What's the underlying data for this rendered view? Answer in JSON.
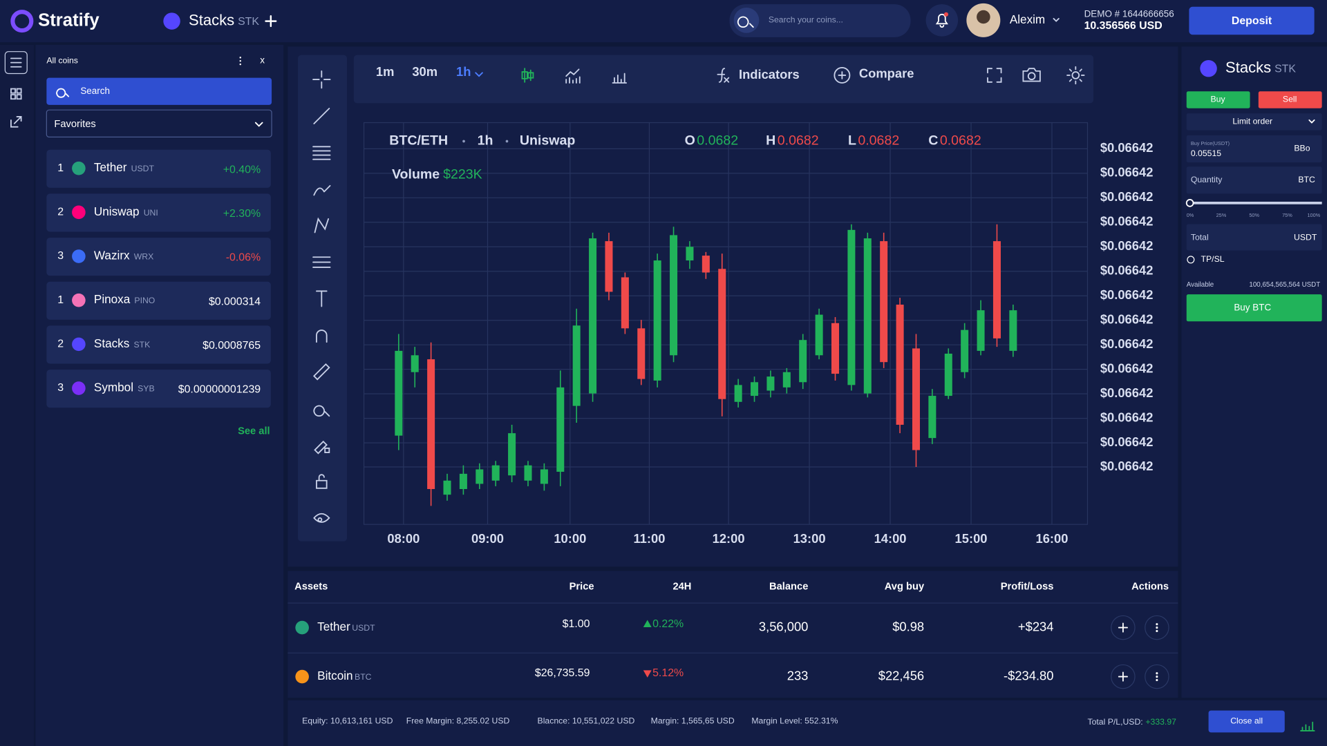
{
  "header": {
    "brand": "Stratify",
    "pair": {
      "name": "Stacks",
      "ticker": "STK"
    },
    "search_placeholder": "Search your coins...",
    "user": "Alexim",
    "account": "DEMO # 1644666656",
    "balance": "10.356566 USD",
    "deposit": "Deposit"
  },
  "coins_panel": {
    "title": "All coins",
    "close": "x",
    "search": "Search",
    "filter": "Favorites",
    "see_all": "See all",
    "coins": [
      {
        "rank": "1",
        "name": "Tether",
        "ticker": "USDT",
        "value": "+0.40%",
        "icon": "#26a17b"
      },
      {
        "rank": "2",
        "name": "Uniswap",
        "ticker": "UNI",
        "value": "+2.30%",
        "icon": "#ff007a"
      },
      {
        "rank": "3",
        "name": "Wazirx",
        "ticker": "WRX",
        "value": "-0.06%",
        "icon": "#3b6cf6"
      },
      {
        "rank": "1",
        "name": "Pinoxa",
        "ticker": "PINO",
        "value": "$0.000314",
        "icon": "#f472b6"
      },
      {
        "rank": "2",
        "name": "Stacks",
        "ticker": "STK",
        "value": "$0.0008765",
        "icon": "#5546ff"
      },
      {
        "rank": "3",
        "name": "Symbol",
        "ticker": "SYB",
        "value": "$0.00000001239",
        "icon": "#7b2ff7"
      }
    ]
  },
  "toolbar": {
    "timeframes": [
      "1m",
      "30m",
      "1h"
    ],
    "indicators": "Indicators",
    "compare": "Compare"
  },
  "chart_data": {
    "type": "candlestick",
    "pair": "BTC/ETH",
    "interval": "1h",
    "exchange": "Uniswap",
    "ohlc": [
      {
        "key": "O",
        "value": "0.0682"
      },
      {
        "key": "H",
        "value": "0.0682"
      },
      {
        "key": "L",
        "value": "0.0682"
      },
      {
        "key": "C",
        "value": "0.0682"
      }
    ],
    "volume_label": "Volume",
    "volume": "$223K",
    "up_color": "#21b35a",
    "down_color": "#ef4a4a",
    "grid": true,
    "xlim": [
      -2.15,
      42.6
    ],
    "xticks": [
      {
        "value": 0.3,
        "label": "08:00"
      },
      {
        "value": 5.5,
        "label": "09:00"
      },
      {
        "value": 10.6,
        "label": "10:00"
      },
      {
        "value": 15.5,
        "label": "11:00"
      },
      {
        "value": 20.4,
        "label": "12:00"
      },
      {
        "value": 25.4,
        "label": "13:00"
      },
      {
        "value": 30.4,
        "label": "14:00"
      },
      {
        "value": 35.4,
        "label": "15:00"
      },
      {
        "value": 40.4,
        "label": "16:00"
      }
    ],
    "ylim": [
      0,
      100
    ],
    "yticks": [
      {
        "value": 93.5,
        "label": "$0.06642"
      },
      {
        "value": 87.4,
        "label": "$0.06642"
      },
      {
        "value": 81.3,
        "label": "$0.06642"
      },
      {
        "value": 75.2,
        "label": "$0.06642"
      },
      {
        "value": 69.1,
        "label": "$0.06642"
      },
      {
        "value": 63.0,
        "label": "$0.06642"
      },
      {
        "value": 56.9,
        "label": "$0.06642"
      },
      {
        "value": 50.8,
        "label": "$0.06642"
      },
      {
        "value": 44.7,
        "label": "$0.06642"
      },
      {
        "value": 38.6,
        "label": "$0.06642"
      },
      {
        "value": 32.5,
        "label": "$0.06642"
      },
      {
        "value": 26.4,
        "label": "$0.06642"
      },
      {
        "value": 20.3,
        "label": "$0.06642"
      },
      {
        "value": 14.3,
        "label": "$0.06642"
      }
    ],
    "open": [
      22.1,
      37.9,
      41.1,
      7.4,
      8.8,
      10.1,
      10.9,
      12.2,
      10.9,
      10.1,
      13.1,
      29.5,
      32.6,
      70.5,
      61.5,
      48.8,
      35.8,
      42.1,
      65.7,
      66.9,
      63.6,
      30.5,
      32.0,
      33.3,
      34.1,
      35.4,
      42.1,
      50.1,
      34.7,
      32.6,
      70.5,
      54.7,
      43.8,
      21.5,
      32.0,
      37.9,
      43.2,
      70.5,
      43.2
    ],
    "high": [
      47.4,
      44.2,
      45.3,
      12.6,
      14.7,
      15.2,
      15.8,
      24.8,
      15.8,
      15.2,
      38.3,
      53.7,
      72.6,
      72.6,
      62.7,
      50.9,
      67.4,
      74.1,
      70.5,
      67.8,
      67.4,
      36.2,
      36.8,
      38.3,
      38.9,
      47.4,
      53.7,
      51.6,
      74.7,
      72.6,
      72.6,
      56.4,
      47.4,
      33.7,
      43.8,
      50.1,
      55.8,
      74.7,
      54.7
    ],
    "low": [
      18.5,
      34.1,
      4.6,
      5.9,
      7.4,
      8.8,
      9.5,
      10.5,
      9.5,
      8.4,
      9.5,
      25.3,
      30.5,
      55.8,
      47.4,
      34.7,
      34.1,
      40.4,
      63.6,
      61.1,
      26.9,
      29.1,
      30.5,
      31.6,
      32.6,
      33.7,
      41.1,
      35.8,
      33.3,
      31.6,
      38.9,
      22.7,
      14.3,
      20.0,
      31.2,
      36.4,
      42.1,
      44.2,
      41.7
    ],
    "close": [
      43.2,
      42.1,
      8.8,
      10.9,
      12.6,
      13.7,
      14.7,
      22.7,
      14.7,
      13.7,
      34.1,
      49.5,
      71.2,
      57.9,
      48.8,
      36.2,
      65.7,
      72.0,
      69.1,
      62.7,
      31.2,
      34.7,
      35.4,
      36.8,
      37.9,
      45.9,
      52.2,
      37.5,
      73.3,
      71.2,
      40.4,
      24.8,
      18.5,
      32.0,
      42.5,
      48.4,
      53.3,
      46.3,
      53.3
    ]
  },
  "order": {
    "name": "Stacks",
    "ticker": "STK",
    "buy": "Buy",
    "sell": "Sell",
    "order_type": "Limit order",
    "price_label": "Buy Price(USDT)",
    "price": "0.05515",
    "bbo": "BBo",
    "quantity": "Quantity",
    "quantity_unit": "BTC",
    "steps": [
      "0%",
      "25%",
      "50%",
      "75%",
      "100%"
    ],
    "total": "Total",
    "total_unit": "USDT",
    "tpsl": "TP/SL",
    "available_label": "Available",
    "available": "100,654,565,564 USDT",
    "submit": "Buy BTC"
  },
  "assets": {
    "headers": [
      "Assets",
      "Price",
      "24H",
      "Balance",
      "Avg buy",
      "Profit/Loss",
      "Actions"
    ],
    "rows": [
      {
        "name": "Tether",
        "ticker": "USDT",
        "price": "$1.00",
        "change": "0.22%",
        "balance": "3,56,000",
        "avg": "$0.98",
        "pl": "+$234",
        "icon": "#26a17b",
        "up": true
      },
      {
        "name": "Bitcoin",
        "ticker": "BTC",
        "price": "$26,735.59",
        "change": "5.12%",
        "balance": "233",
        "avg": "$22,456",
        "pl": "-$234.80",
        "icon": "#f7931a",
        "up": false
      }
    ]
  },
  "footer": {
    "items": [
      "Equity: 10,613,161 USD",
      "Free Margin: 8,255.02 USD",
      "Blacnce: 10,551,022 USD",
      "Margin: 1,565,65 USD",
      "Margin Level: 552.31%"
    ],
    "total_label": "Total P/L,USD:",
    "total": "+333.97",
    "close_all": "Close all"
  }
}
